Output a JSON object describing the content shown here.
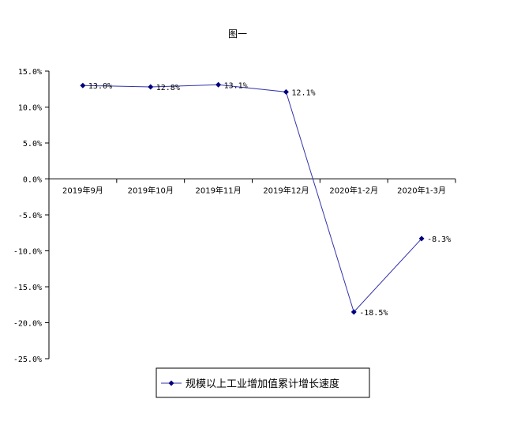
{
  "chart_data": {
    "type": "line",
    "title": "图一",
    "categories": [
      "2019年9月",
      "2019年10月",
      "2019年11月",
      "2019年12月",
      "2020年1-2月",
      "2020年1-3月"
    ],
    "series": [
      {
        "name": "规模以上工业增加值累计增长速度",
        "values": [
          13.0,
          12.8,
          13.1,
          12.1,
          -18.5,
          -8.3
        ],
        "labels": [
          "13.0%",
          "12.8%",
          "13.1%",
          "12.1%",
          "-18.5%",
          "-8.3%"
        ],
        "color": "#3333aa",
        "marker_color": "#000080",
        "marker": "diamond"
      }
    ],
    "y_ticks": [
      15,
      10,
      5,
      0,
      -5,
      -10,
      -15,
      -20,
      -25
    ],
    "y_tick_labels": [
      "15.0%",
      "10.0%",
      "5.0%",
      "0.0%",
      "-5.0%",
      "-10.0%",
      "-15.0%",
      "-20.0%",
      "-25.0%"
    ],
    "ylim": [
      -25,
      15
    ],
    "xlabel": "",
    "ylabel": "",
    "grid": false,
    "legend_position": "bottom"
  }
}
